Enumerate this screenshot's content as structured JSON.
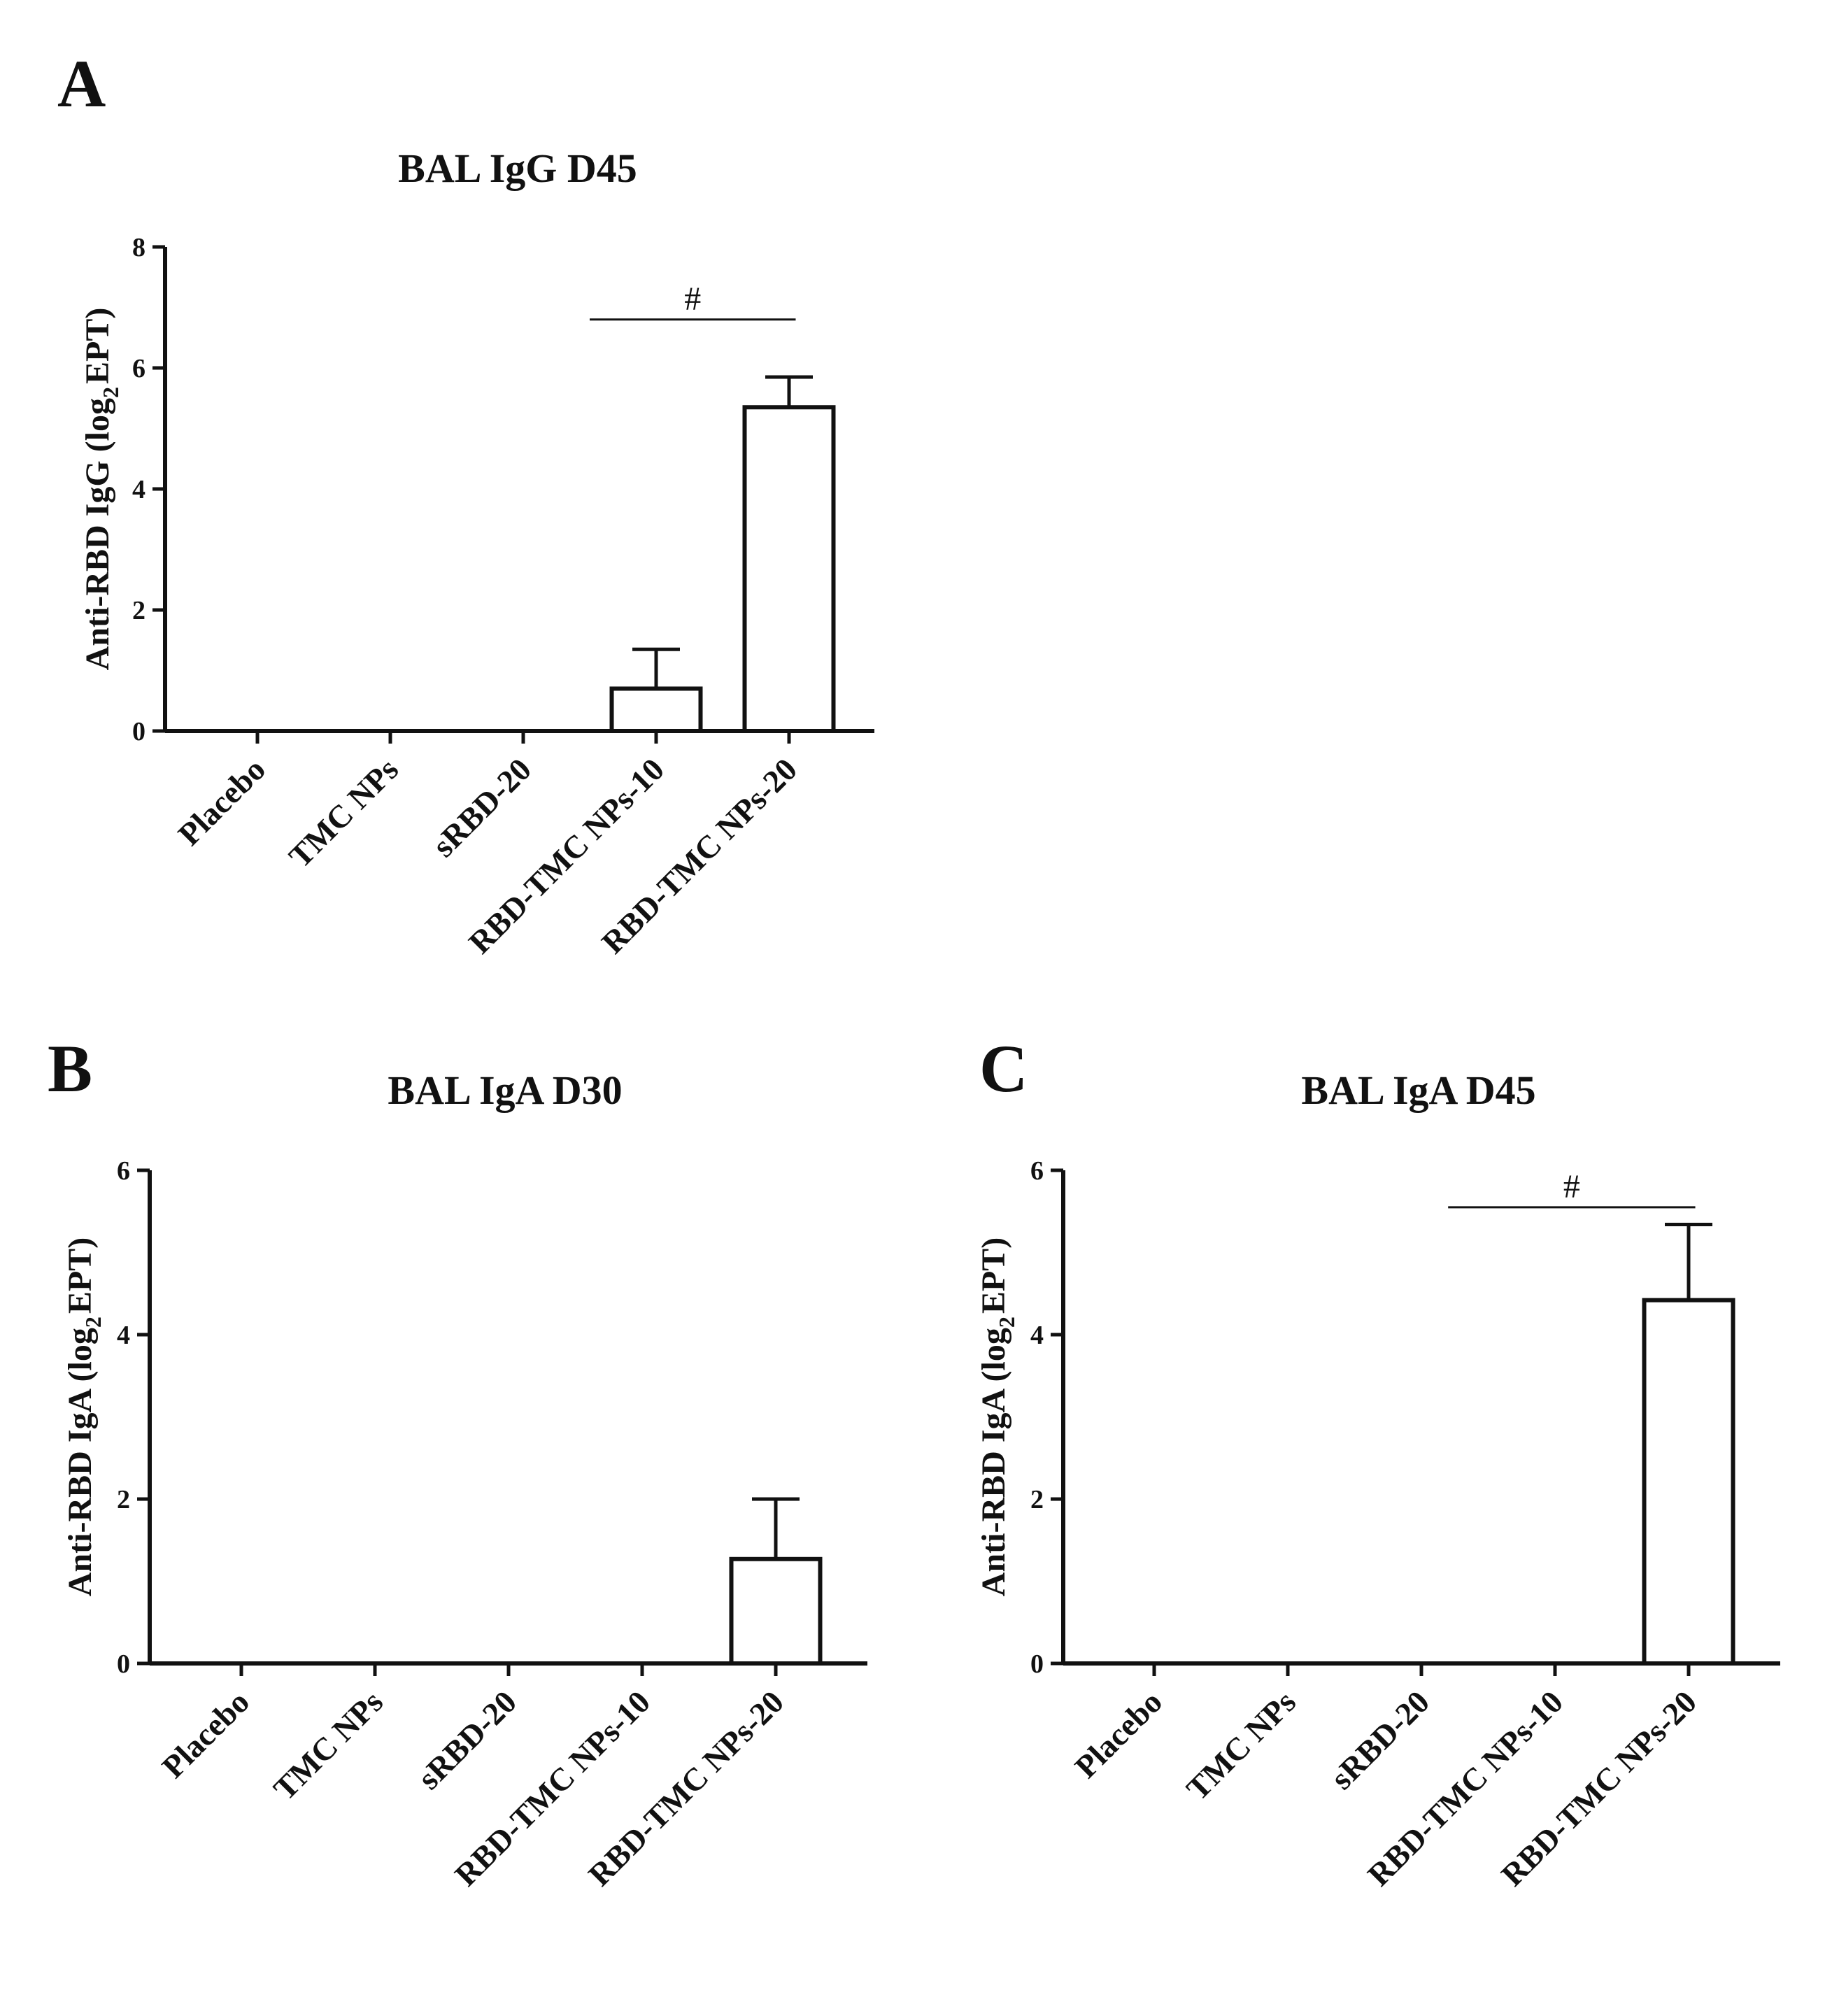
{
  "chart_data": [
    {
      "type": "bar",
      "panel": "A",
      "title": "BAL IgG D45",
      "ylabel_main": "Anti-RBD IgG (log",
      "ylabel_sub": "2",
      "ylabel_tail": "EPT)",
      "xlabel": "",
      "ylim": [
        0,
        8
      ],
      "yticks": [
        0,
        2,
        4,
        6,
        8
      ],
      "categories": [
        "Placebo",
        "TMC NPs",
        "sRBD-20",
        "RBD-TMC NPs-10",
        "RBD-TMC NPs-20"
      ],
      "values": [
        0,
        0,
        0,
        0.7,
        5.35
      ],
      "errors": [
        0,
        0,
        0,
        0.65,
        0.5
      ],
      "significance": {
        "label": "#",
        "from": 2.5,
        "to": 4.05,
        "y": 6.8
      }
    },
    {
      "type": "bar",
      "panel": "B",
      "title": "BAL IgA D30",
      "ylabel_main": "Anti-RBD IgA (log",
      "ylabel_sub": "2",
      "ylabel_tail": "EPT)",
      "xlabel": "",
      "ylim": [
        0,
        6
      ],
      "yticks": [
        0,
        2,
        4,
        6
      ],
      "categories": [
        "Placebo",
        "TMC NPs",
        "sRBD-20",
        "RBD-TMC NPs-10",
        "RBD-TMC NPs-20"
      ],
      "values": [
        0,
        0,
        0,
        0,
        1.27
      ],
      "errors": [
        0,
        0,
        0,
        0,
        0.73
      ],
      "significance": null
    },
    {
      "type": "bar",
      "panel": "C",
      "title": "BAL IgA D45",
      "ylabel_main": "Anti-RBD IgA (log",
      "ylabel_sub": "2",
      "ylabel_tail": "EPT)",
      "xlabel": "",
      "ylim": [
        0,
        6
      ],
      "yticks": [
        0,
        2,
        4,
        6
      ],
      "categories": [
        "Placebo",
        "TMC NPs",
        "sRBD-20",
        "RBD-TMC NPs-10",
        "RBD-TMC NPs-20"
      ],
      "values": [
        0,
        0,
        0,
        0,
        4.42
      ],
      "errors": [
        0,
        0,
        0,
        0,
        0.92
      ],
      "significance": {
        "label": "#",
        "from": 2.2,
        "to": 4.05,
        "y": 5.55
      }
    }
  ]
}
